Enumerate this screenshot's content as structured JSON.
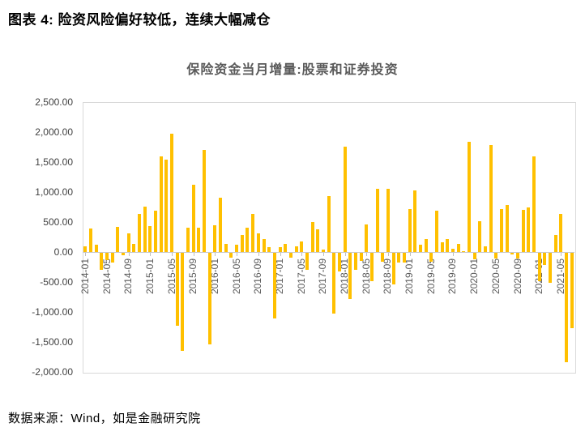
{
  "figure": {
    "title": "图表 4: 险资风险偏好较低，连续大幅减仓"
  },
  "source": "数据来源：Wind，如是金融研究院",
  "colors": {
    "bar": "#FFC000",
    "axis_border": "#d9d9d9",
    "zero_line": "#c9c9c9",
    "tick_text": "#595959",
    "title_text": "#595959"
  },
  "chart_data": {
    "type": "bar",
    "title": "保险资金当月增量:股票和证券投资",
    "xlabel": "",
    "ylabel": "",
    "ylim": [
      -2000,
      2500
    ],
    "grid": false,
    "legend": "none",
    "y_ticks": [
      2500,
      2000,
      1500,
      1000,
      500,
      0,
      -500,
      -1000,
      -1500,
      -2000
    ],
    "y_tick_format": "#,##0.00",
    "x_tick_labels": [
      "2014-01",
      "2014-05",
      "2014-09",
      "2015-01",
      "2015-05",
      "2015-09",
      "2016-01",
      "2016-05",
      "2016-09",
      "2017-01",
      "2017-05",
      "2017-09",
      "2018-01",
      "2018-05",
      "2018-09",
      "2019-01",
      "2019-05",
      "2019-09",
      "2020-01",
      "2020-05",
      "2020-09",
      "2021-01",
      "2021-05"
    ],
    "x": [
      "2014-01",
      "2014-02",
      "2014-03",
      "2014-04",
      "2014-05",
      "2014-06",
      "2014-07",
      "2014-08",
      "2014-09",
      "2014-10",
      "2014-11",
      "2014-12",
      "2015-01",
      "2015-02",
      "2015-03",
      "2015-04",
      "2015-05",
      "2015-06",
      "2015-07",
      "2015-08",
      "2015-09",
      "2015-10",
      "2015-11",
      "2015-12",
      "2016-01",
      "2016-02",
      "2016-03",
      "2016-04",
      "2016-05",
      "2016-06",
      "2016-07",
      "2016-08",
      "2016-09",
      "2016-10",
      "2016-11",
      "2016-12",
      "2017-01",
      "2017-02",
      "2017-03",
      "2017-04",
      "2017-05",
      "2017-06",
      "2017-07",
      "2017-08",
      "2017-09",
      "2017-10",
      "2017-11",
      "2017-12",
      "2018-01",
      "2018-02",
      "2018-03",
      "2018-04",
      "2018-05",
      "2018-06",
      "2018-07",
      "2018-08",
      "2018-09",
      "2018-10",
      "2018-11",
      "2018-12",
      "2019-01",
      "2019-02",
      "2019-03",
      "2019-04",
      "2019-05",
      "2019-06",
      "2019-07",
      "2019-08",
      "2019-09",
      "2019-10",
      "2019-11",
      "2019-12",
      "2020-01",
      "2020-02",
      "2020-03",
      "2020-04",
      "2020-05",
      "2020-06",
      "2020-07",
      "2020-08",
      "2020-09",
      "2020-10",
      "2020-11",
      "2020-12",
      "2021-01",
      "2021-02",
      "2021-03",
      "2021-04",
      "2021-05",
      "2021-06",
      "2021-07"
    ],
    "values": [
      90,
      390,
      120,
      -280,
      -120,
      -160,
      420,
      -40,
      310,
      130,
      630,
      760,
      430,
      690,
      1600,
      1540,
      1980,
      -1220,
      -1630,
      405,
      1120,
      400,
      1700,
      -1530,
      445,
      910,
      140,
      -80,
      120,
      280,
      400,
      630,
      310,
      220,
      75,
      -1100,
      85,
      130,
      -75,
      95,
      175,
      -280,
      505,
      380,
      35,
      930,
      -1010,
      -310,
      1760,
      -770,
      -280,
      -130,
      460,
      -470,
      1060,
      -150,
      1060,
      -520,
      -155,
      -155,
      720,
      1030,
      120,
      220,
      -150,
      690,
      165,
      220,
      50,
      130,
      20,
      1840,
      -110,
      510,
      100,
      1780,
      -100,
      720,
      780,
      -30,
      -100,
      700,
      745,
      1595,
      -470,
      -200,
      -500,
      290,
      630,
      -1820,
      -1250
    ]
  }
}
